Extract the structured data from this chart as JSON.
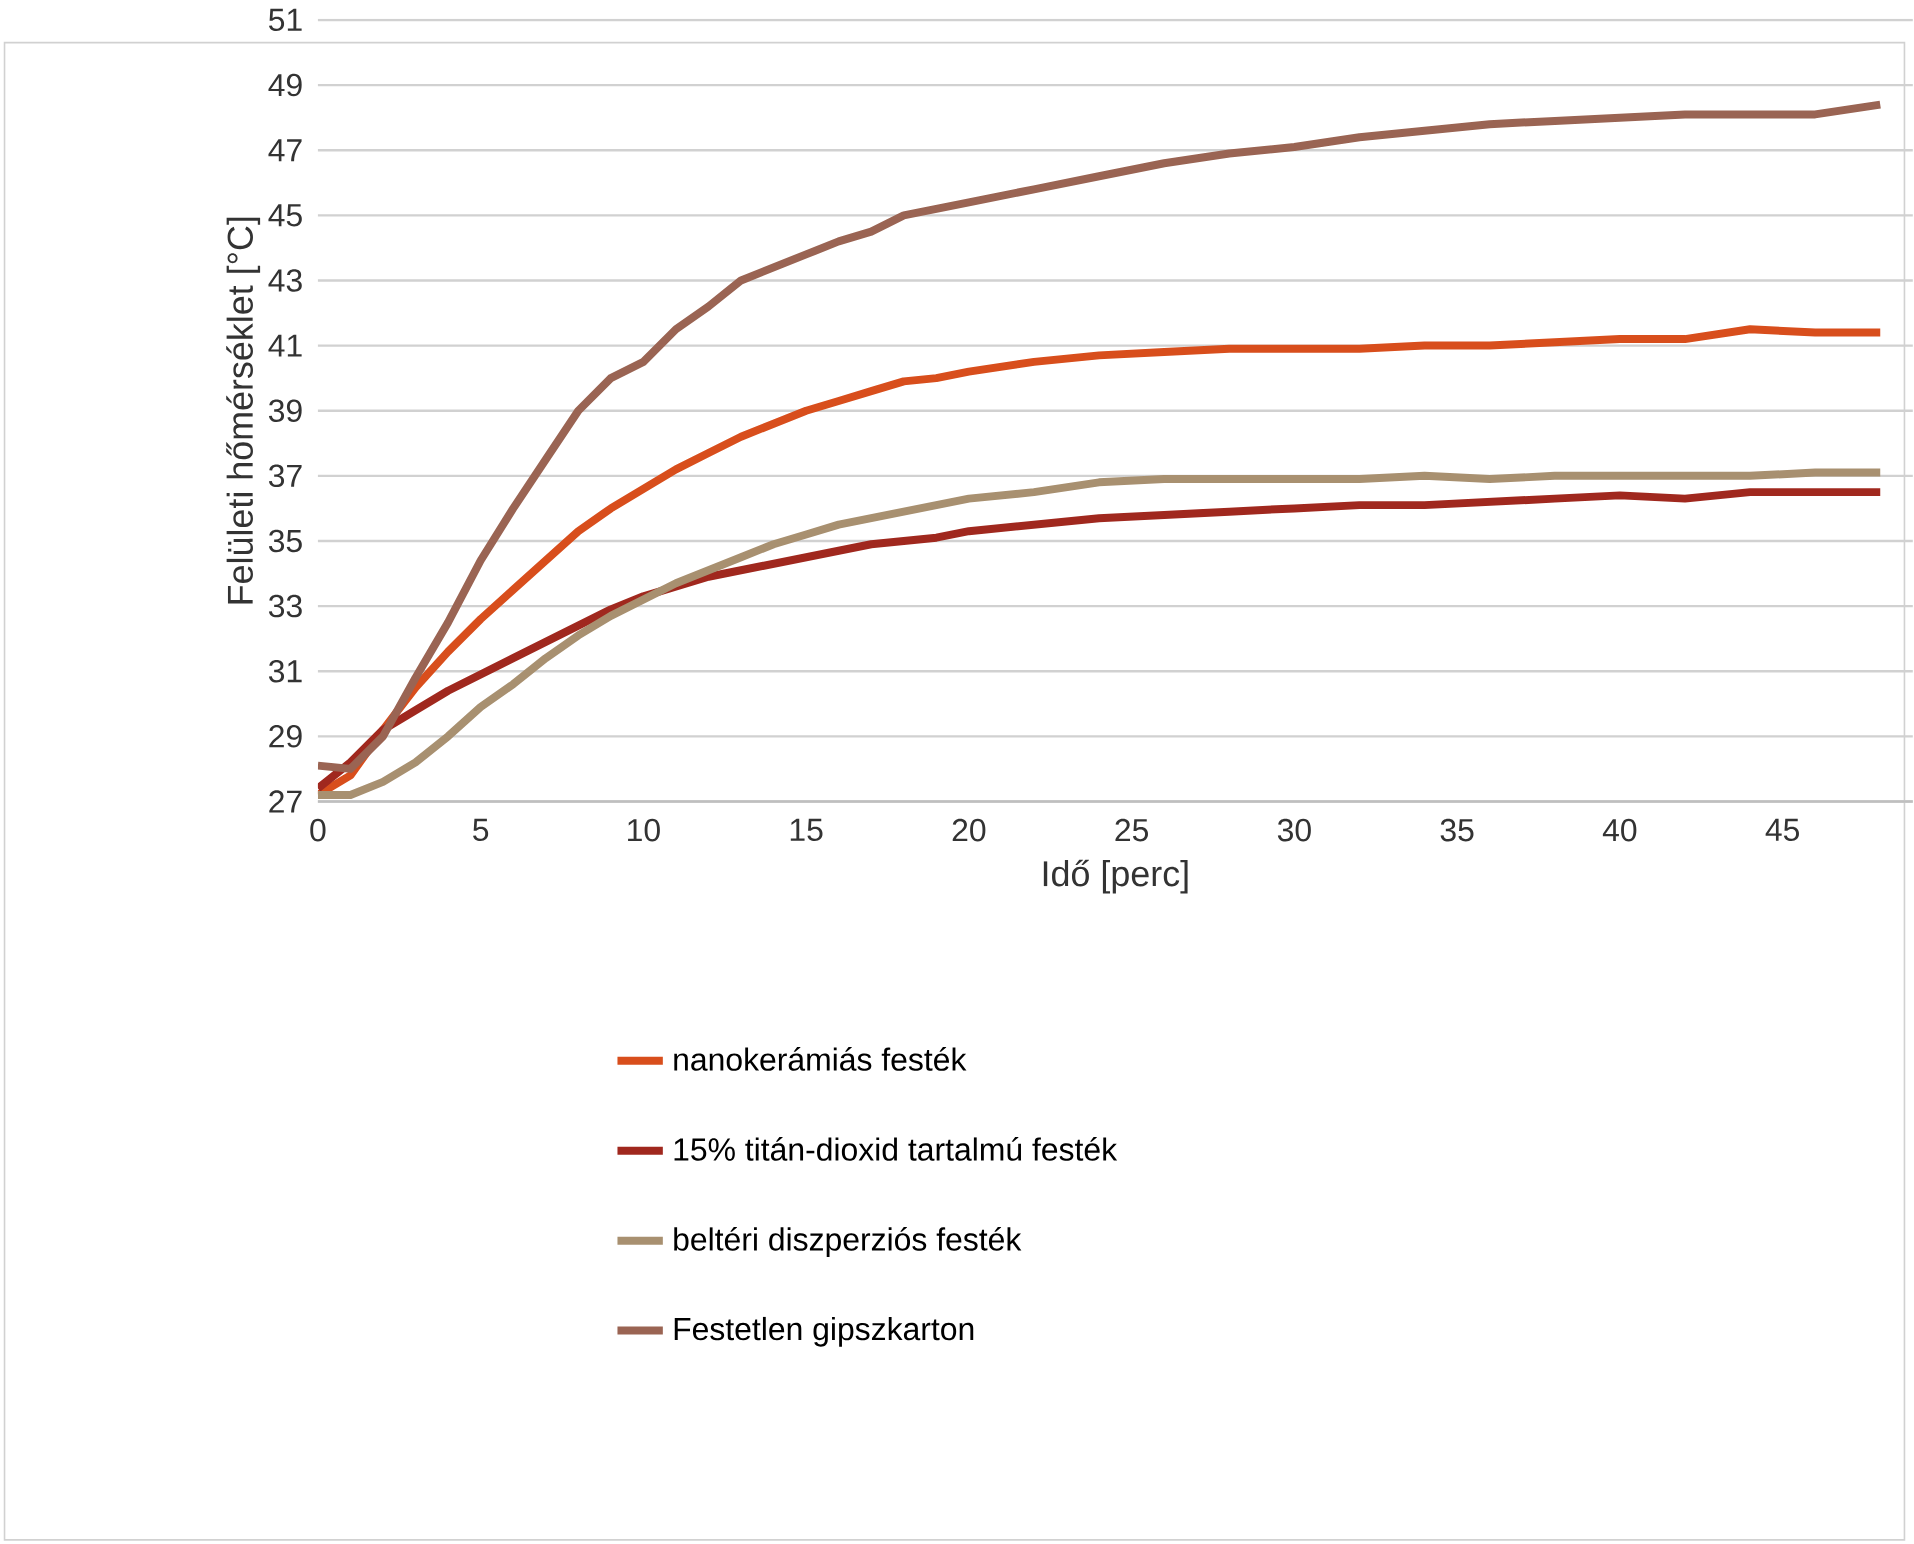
{
  "chart_data": {
    "type": "line",
    "xlabel": "Idő [perc]",
    "ylabel": "Felületi hőmérséklet [°C]",
    "xlim": [
      0,
      49
    ],
    "ylim": [
      27,
      51
    ],
    "xticks": [
      0,
      5,
      10,
      15,
      20,
      25,
      30,
      35,
      40,
      45
    ],
    "yticks": [
      27,
      29,
      31,
      33,
      35,
      37,
      39,
      41,
      43,
      45,
      47,
      49,
      51
    ],
    "grid": "y",
    "legend": "bottom",
    "marker": "none",
    "line_style": "solid",
    "x": [
      0,
      1,
      2,
      3,
      4,
      5,
      6,
      7,
      8,
      9,
      10,
      11,
      12,
      13,
      14,
      15,
      16,
      17,
      18,
      19,
      20,
      22,
      24,
      26,
      28,
      30,
      32,
      34,
      36,
      38,
      40,
      42,
      44,
      46,
      48
    ],
    "series": [
      {
        "name": "nanokerámiás festék",
        "color": "#d84e1c",
        "values": [
          27.2,
          27.8,
          29.2,
          30.5,
          31.6,
          32.6,
          33.5,
          34.4,
          35.3,
          36.0,
          36.6,
          37.2,
          37.7,
          38.2,
          38.6,
          39.0,
          39.3,
          39.6,
          39.9,
          40.0,
          40.2,
          40.5,
          40.7,
          40.8,
          40.9,
          40.9,
          40.9,
          41.0,
          41.0,
          41.1,
          41.2,
          41.2,
          41.5,
          41.4,
          41.4
        ]
      },
      {
        "name": "15% titán-dioxid tartalmú festék",
        "color": "#a0281e",
        "values": [
          27.4,
          28.2,
          29.2,
          29.8,
          30.4,
          30.9,
          31.4,
          31.9,
          32.4,
          32.9,
          33.3,
          33.6,
          33.9,
          34.1,
          34.3,
          34.5,
          34.7,
          34.9,
          35.0,
          35.1,
          35.3,
          35.5,
          35.7,
          35.8,
          35.9,
          36.0,
          36.1,
          36.1,
          36.2,
          36.3,
          36.4,
          36.3,
          36.5,
          36.5,
          36.5
        ]
      },
      {
        "name": "beltéri diszperziós festék",
        "color": "#a89070",
        "values": [
          27.2,
          27.2,
          27.6,
          28.2,
          29.0,
          29.9,
          30.6,
          31.4,
          32.1,
          32.7,
          33.2,
          33.7,
          34.1,
          34.5,
          34.9,
          35.2,
          35.5,
          35.7,
          35.9,
          36.1,
          36.3,
          36.5,
          36.8,
          36.9,
          36.9,
          36.9,
          36.9,
          37.0,
          36.9,
          37.0,
          37.0,
          37.0,
          37.0,
          37.1,
          37.1
        ]
      },
      {
        "name": "Festetlen gipszkarton",
        "color": "#9a6453",
        "values": [
          28.1,
          28.0,
          29.0,
          30.8,
          32.5,
          34.4,
          36.0,
          37.5,
          39.0,
          40.0,
          40.5,
          41.5,
          42.2,
          43.0,
          43.4,
          43.8,
          44.2,
          44.5,
          45.0,
          45.2,
          45.4,
          45.8,
          46.2,
          46.6,
          46.9,
          47.1,
          47.4,
          47.6,
          47.8,
          47.9,
          48.0,
          48.1,
          48.1,
          48.1,
          48.4
        ]
      }
    ]
  }
}
